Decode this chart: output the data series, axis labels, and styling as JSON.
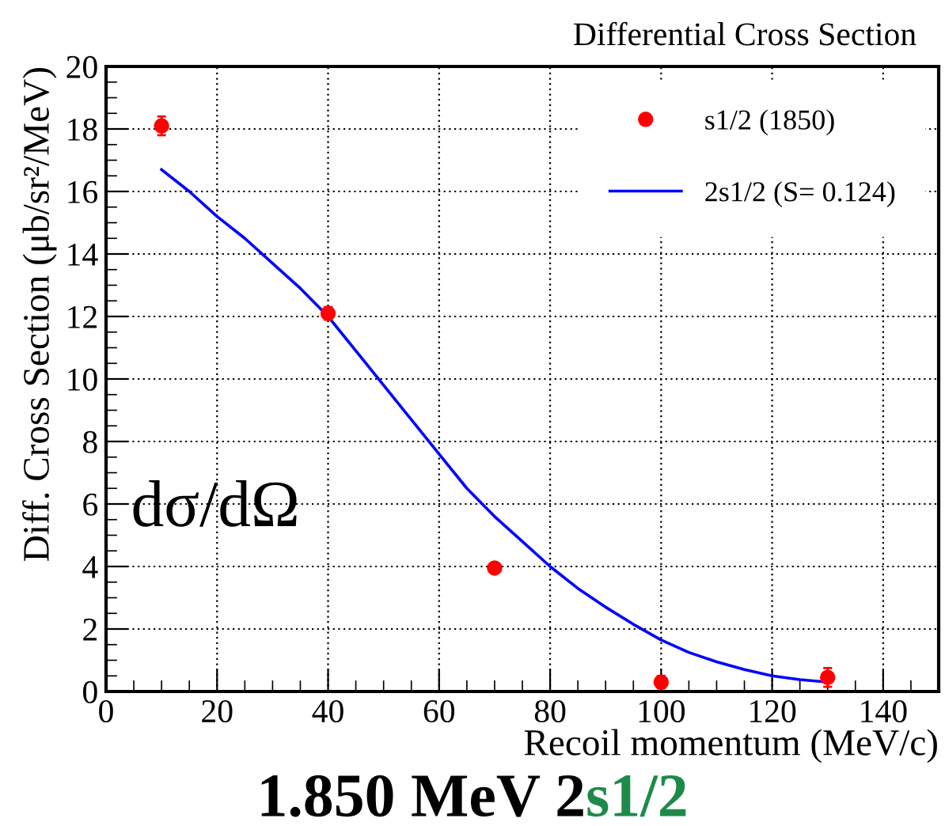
{
  "chart_data": {
    "type": "scatter",
    "title": "Differential Cross Section",
    "xlabel": "Recoil momentum (MeV/c)",
    "ylabel": "Diff. Cross Section (μb/sr²/MeV)",
    "annotations": [
      "dσ/dΩ",
      "1.850 MeV 2",
      "s1/2"
    ],
    "series": [
      {
        "name": "s1/2 (1850)",
        "color": "#ff0000",
        "marker": "circle",
        "x": [
          10,
          40,
          70,
          100,
          130
        ],
        "values": [
          18.1,
          12.1,
          3.95,
          0.3,
          0.45
        ],
        "errors": [
          0.3,
          0.2,
          null,
          0.2,
          0.3
        ]
      },
      {
        "name": "2s1/2 (S= 0.124)",
        "type": "line",
        "color": "#0000ff",
        "marker": "none",
        "x": [
          10,
          15,
          20,
          25,
          30,
          35,
          40,
          45,
          50,
          55,
          60,
          65,
          70,
          75,
          80,
          85,
          90,
          95,
          100,
          105,
          110,
          115,
          120,
          125,
          130
        ],
        "values": [
          16.7,
          16.0,
          15.2,
          14.5,
          13.7,
          12.9,
          12.0,
          10.9,
          9.8,
          8.7,
          7.6,
          6.5,
          5.6,
          4.8,
          4.0,
          3.3,
          2.7,
          2.15,
          1.65,
          1.25,
          0.95,
          0.7,
          0.5,
          0.38,
          0.3
        ]
      }
    ],
    "xlim": [
      0,
      150
    ],
    "xticks": [
      0,
      20,
      40,
      60,
      80,
      100,
      120,
      140
    ],
    "ylim": [
      0,
      20
    ],
    "yticks": [
      0,
      2,
      4,
      6,
      8,
      10,
      12,
      14,
      16,
      18,
      20
    ],
    "grid": true,
    "legend": "top right"
  }
}
